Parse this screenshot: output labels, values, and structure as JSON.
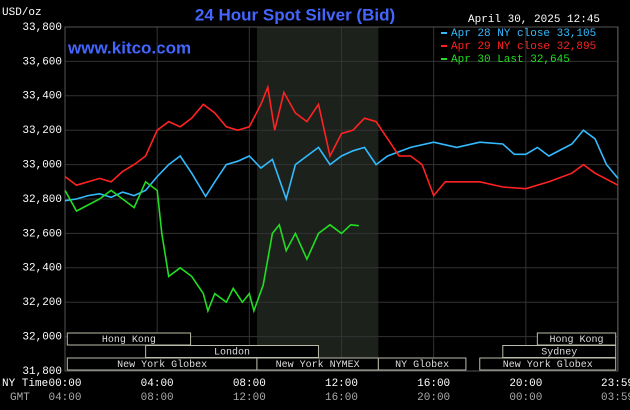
{
  "chart_data": {
    "type": "line",
    "title": "24 Hour Spot Silver (Bid)",
    "y_label": "USD/oz",
    "source": "www.kitco.com",
    "timestamp": "April 30, 2025 12:45",
    "x_label": "NY Time",
    "x2_label": "GMT",
    "xlim": [
      0,
      24
    ],
    "xticks": [
      {
        "value": 0,
        "label": "00:00"
      },
      {
        "value": 4,
        "label": "04:00"
      },
      {
        "value": 8,
        "label": "08:00"
      },
      {
        "value": 12,
        "label": "12:00"
      },
      {
        "value": 16,
        "label": "16:00"
      },
      {
        "value": 20,
        "label": "20:00"
      },
      {
        "value": 23.98,
        "label": "23:59"
      }
    ],
    "x2ticks": [
      {
        "value": 0,
        "label": "04:00"
      },
      {
        "value": 4,
        "label": "08:00"
      },
      {
        "value": 8,
        "label": "12:00"
      },
      {
        "value": 12,
        "label": "16:00"
      },
      {
        "value": 16,
        "label": "20:00"
      },
      {
        "value": 20,
        "label": "00:00"
      },
      {
        "value": 23.98,
        "label": "03:59"
      }
    ],
    "ylim": [
      31800,
      33800
    ],
    "yticks": [
      {
        "value": 31800,
        "label": "31,800"
      },
      {
        "value": 32000,
        "label": "32,000"
      },
      {
        "value": 32200,
        "label": "32,200"
      },
      {
        "value": 32400,
        "label": "32,400"
      },
      {
        "value": 32600,
        "label": "32,600"
      },
      {
        "value": 32800,
        "label": "32,800"
      },
      {
        "value": 33000,
        "label": "33,000"
      },
      {
        "value": 33200,
        "label": "33,200"
      },
      {
        "value": 33400,
        "label": "33,400"
      },
      {
        "value": 33600,
        "label": "33,600"
      },
      {
        "value": 33800,
        "label": "33,800"
      }
    ],
    "grid": true,
    "highlight": [
      8.33,
      13.6
    ],
    "sessions": [
      [
        {
          "name": "Hong Kong",
          "start": 0.1,
          "end": 5.45
        },
        {
          "name": "Hong Kong",
          "start": 20.5,
          "end": 23.9
        }
      ],
      [
        {
          "name": "London",
          "start": 3.5,
          "end": 11.0
        },
        {
          "name": "Sydney",
          "start": 19.0,
          "end": 23.9
        }
      ],
      [
        {
          "name": "New York Globex",
          "start": 0.1,
          "end": 8.33
        },
        {
          "name": "New York NYMEX",
          "start": 8.33,
          "end": 13.6
        },
        {
          "name": "NY Globex",
          "start": 13.6,
          "end": 17.4
        },
        {
          "name": "New York Globex",
          "start": 18.0,
          "end": 23.9
        }
      ]
    ],
    "series": [
      {
        "name": "Apr 28 NY close 33,105",
        "color": "#33bbff",
        "x": [
          0,
          0.5,
          1,
          1.5,
          2,
          2.5,
          3,
          3.5,
          4,
          4.5,
          5,
          5.5,
          6.1,
          6.5,
          7,
          7.5,
          8,
          8.5,
          9,
          9.6,
          10,
          10.5,
          11,
          11.5,
          12,
          12.5,
          13,
          13.5,
          14,
          15,
          16,
          17,
          18,
          19,
          19.5,
          20,
          20.5,
          21,
          22,
          22.5,
          23,
          23.5,
          24
        ],
        "values": [
          32790,
          32800,
          32820,
          32830,
          32810,
          32840,
          32820,
          32850,
          32930,
          33000,
          33050,
          32950,
          32815,
          32900,
          33000,
          33020,
          33050,
          32980,
          33030,
          32800,
          33000,
          33050,
          33100,
          33000,
          33050,
          33080,
          33100,
          33000,
          33050,
          33100,
          33130,
          33100,
          33130,
          33120,
          33060,
          33060,
          33100,
          33050,
          33120,
          33200,
          33150,
          33000,
          32920
        ]
      },
      {
        "name": "Apr 29 NY close 32,895",
        "color": "#ff2222",
        "x": [
          0,
          0.5,
          1.5,
          2,
          2.5,
          3,
          3.5,
          4,
          4.5,
          5,
          5.5,
          6,
          6.5,
          7,
          7.5,
          8,
          8.5,
          8.8,
          9.1,
          9.5,
          10,
          10.5,
          11,
          11.5,
          12,
          12.5,
          13,
          13.5,
          14,
          14.5,
          15,
          15.5,
          16,
          16.5,
          18,
          19,
          20,
          21,
          22,
          22.5,
          23,
          24
        ],
        "values": [
          32930,
          32880,
          32920,
          32900,
          32960,
          33000,
          33050,
          33200,
          33250,
          33220,
          33270,
          33350,
          33300,
          33220,
          33200,
          33220,
          33350,
          33450,
          33200,
          33420,
          33300,
          33250,
          33350,
          33050,
          33180,
          33200,
          33270,
          33250,
          33150,
          33050,
          33050,
          33000,
          32820,
          32900,
          32900,
          32870,
          32860,
          32900,
          32950,
          33000,
          32950,
          32880
        ]
      },
      {
        "name": "Apr 30 Last 32,645",
        "color": "#22dd22",
        "x": [
          0,
          0.5,
          1.5,
          2,
          2.5,
          3,
          3.5,
          4,
          4.2,
          4.5,
          5,
          5.5,
          6,
          6.2,
          6.5,
          7,
          7.3,
          7.7,
          8,
          8.2,
          8.6,
          9,
          9.3,
          9.6,
          10,
          10.5,
          11,
          11.5,
          12,
          12.4,
          12.75
        ],
        "values": [
          32850,
          32730,
          32800,
          32850,
          32800,
          32750,
          32900,
          32850,
          32600,
          32350,
          32400,
          32350,
          32250,
          32150,
          32250,
          32200,
          32280,
          32200,
          32250,
          32150,
          32300,
          32600,
          32650,
          32500,
          32600,
          32450,
          32600,
          32650,
          32600,
          32650,
          32645
        ]
      }
    ]
  }
}
